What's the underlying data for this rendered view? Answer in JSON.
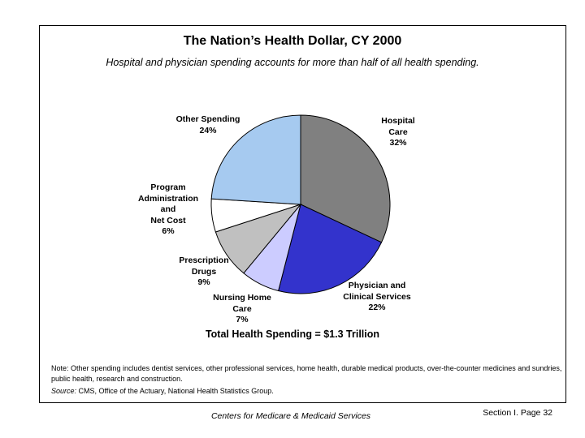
{
  "chart_data": {
    "type": "pie",
    "title": "The Nation’s Health Dollar, CY 2000",
    "subtitle": "Hospital and physician spending accounts for more than half of all health spending.",
    "slices": [
      {
        "label": "Hospital Care",
        "label_lines": [
          "Hospital",
          "Care",
          "32%"
        ],
        "value": 32,
        "color": "#808080"
      },
      {
        "label": "Physician and Clinical Services",
        "label_lines": [
          "Physician and",
          "Clinical Services",
          "22%"
        ],
        "value": 22,
        "color": "#3333cc"
      },
      {
        "label": "Nursing Home Care",
        "label_lines": [
          "Nursing Home",
          "Care",
          "7%"
        ],
        "value": 7,
        "color": "#ccccff"
      },
      {
        "label": "Prescription Drugs",
        "label_lines": [
          "Prescription",
          "Drugs",
          "9%"
        ],
        "value": 9,
        "color": "#c0c0c0"
      },
      {
        "label": "Program Administration and Net Cost",
        "label_lines": [
          "Program",
          "Administration",
          "and",
          "Net Cost",
          "6%"
        ],
        "value": 6,
        "color": "#ffffff"
      },
      {
        "label": "Other Spending",
        "label_lines": [
          "Other Spending",
          "24%"
        ],
        "value": 24,
        "color": "#a6caf0"
      }
    ],
    "total_label": "Total Health Spending = $1.3 Trillion"
  },
  "note": "Note: Other spending includes dentist services, other professional services, home health, durable medical products, over-the-counter medicines and sundries, public health, research and construction.",
  "source": {
    "label": "Source:",
    "text": " CMS, Office of the Actuary, National Health Statistics Group."
  },
  "footer": {
    "center": "Centers for Medicare & Medicaid Services",
    "right": "Section I. Page 32"
  }
}
